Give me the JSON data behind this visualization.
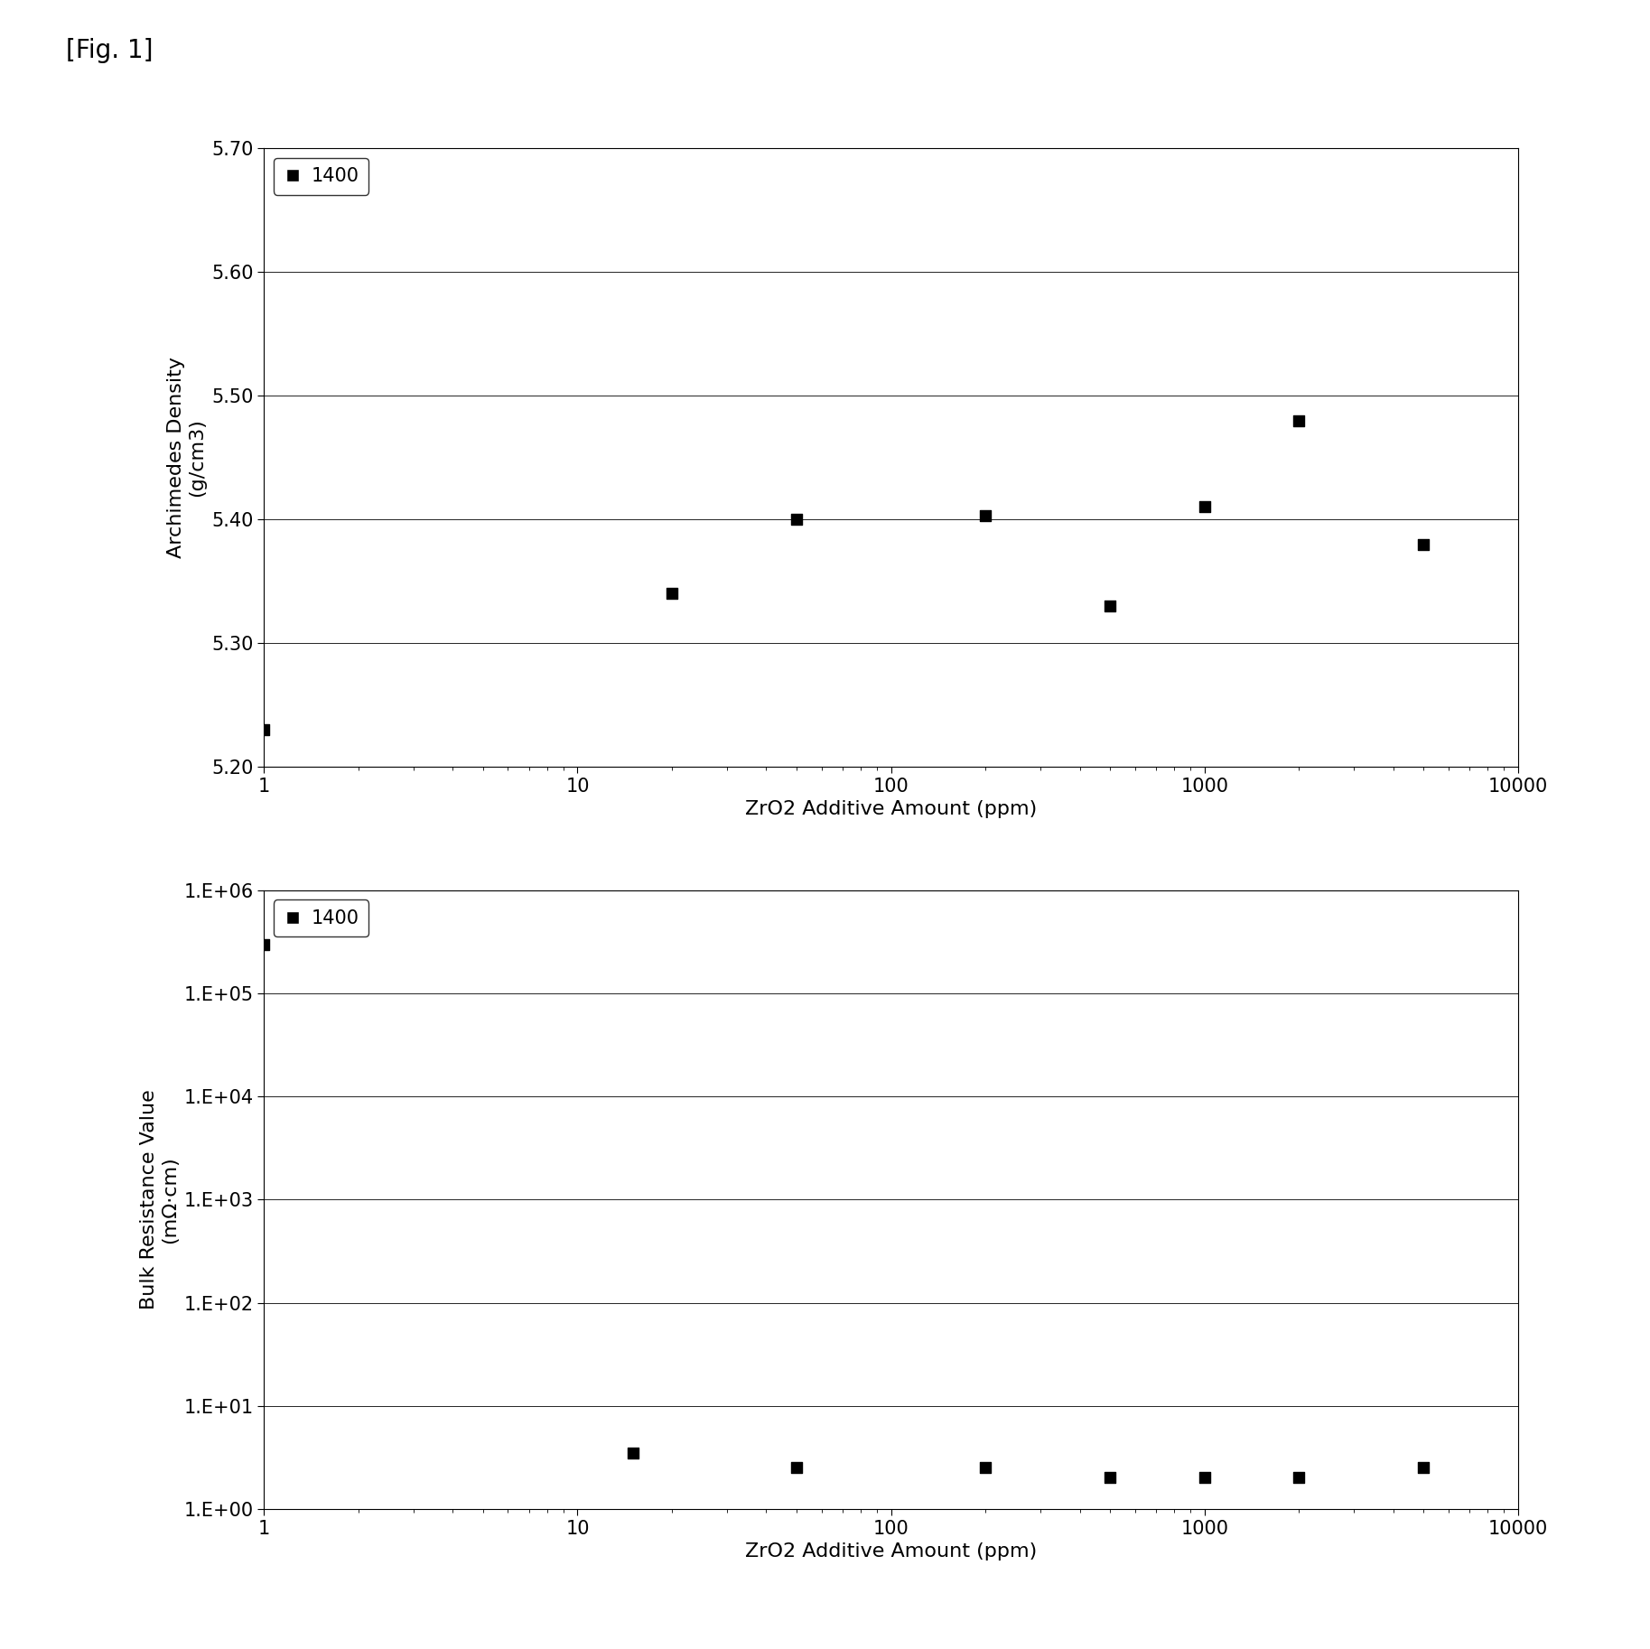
{
  "fig_label": "[Fig. 1]",
  "top_chart": {
    "ylabel_line1": "Archimedes Density",
    "ylabel_line2": "(g/cm3)",
    "xlabel": "ZrO2 Additive Amount (ppm)",
    "xlim": [
      1,
      10000
    ],
    "ylim": [
      5.2,
      5.7
    ],
    "yticks": [
      5.2,
      5.3,
      5.4,
      5.5,
      5.6,
      5.7
    ],
    "legend_label": "1400",
    "data_x": [
      1,
      20,
      50,
      200,
      500,
      1000,
      2000,
      5000
    ],
    "data_y": [
      5.23,
      5.34,
      5.4,
      5.403,
      5.33,
      5.41,
      5.48,
      5.38
    ],
    "marker": "s",
    "marker_color": "#000000",
    "marker_size": 8
  },
  "bottom_chart": {
    "ylabel_line1": "Bulk Resistance Value",
    "ylabel_line2": "(mΩ·cm)",
    "xlabel": "ZrO2 Additive Amount (ppm)",
    "xlim": [
      1,
      10000
    ],
    "ytick_values": [
      1,
      10,
      100,
      1000,
      10000,
      100000,
      1000000
    ],
    "ytick_labels": [
      "1.E+00",
      "1.E+01",
      "1.E+02",
      "1.E+03",
      "1.E+04",
      "1.E+05",
      "1.E+06"
    ],
    "legend_label": "1400",
    "data_x": [
      1,
      15,
      50,
      200,
      500,
      1000,
      2000,
      5000
    ],
    "data_y": [
      300000,
      3.5,
      2.5,
      2.5,
      2.0,
      2.0,
      2.0,
      2.5
    ],
    "marker": "s",
    "marker_color": "#000000",
    "marker_size": 8
  },
  "background_color": "#ffffff",
  "fig_label_fontsize": 20,
  "axis_label_fontsize": 16,
  "tick_label_fontsize": 15,
  "legend_fontsize": 15,
  "grid_color": "#000000",
  "grid_linewidth": 0.6
}
